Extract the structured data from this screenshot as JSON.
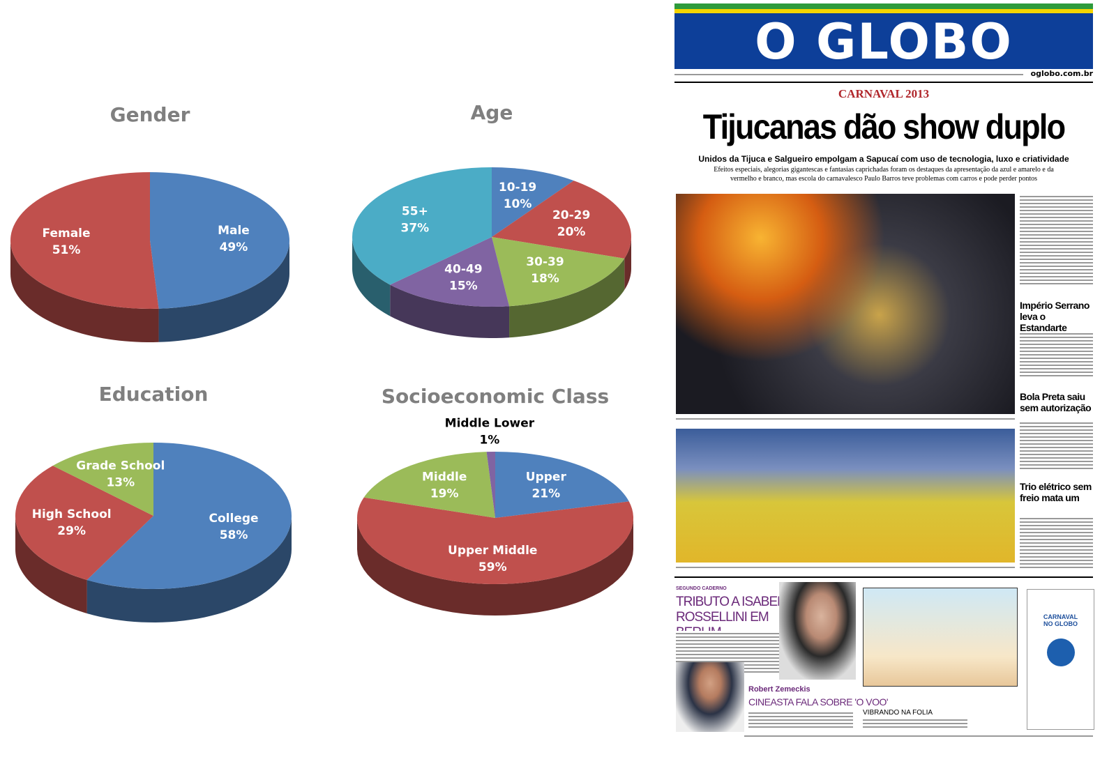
{
  "chart_data": [
    {
      "type": "pie",
      "title": "Gender",
      "categories": [
        "Male",
        "Female"
      ],
      "values": [
        49,
        51
      ],
      "value_labels": [
        "49%",
        "51%"
      ],
      "colors": [
        "#4f81bd",
        "#c0504d"
      ]
    },
    {
      "type": "pie",
      "title": "Age",
      "categories": [
        "10-19",
        "20-29",
        "30-39",
        "40-49",
        "55+"
      ],
      "values": [
        10,
        20,
        18,
        15,
        37
      ],
      "value_labels": [
        "10%",
        "20%",
        "18%",
        "15%",
        "37%"
      ],
      "colors": [
        "#4f81bd",
        "#c0504d",
        "#9bbb59",
        "#8064a2",
        "#4bacc6"
      ]
    },
    {
      "type": "pie",
      "title": "Education",
      "categories": [
        "College",
        "High School",
        "Grade School"
      ],
      "values": [
        58,
        29,
        13
      ],
      "value_labels": [
        "58%",
        "29%",
        "13%"
      ],
      "colors": [
        "#4f81bd",
        "#c0504d",
        "#9bbb59"
      ]
    },
    {
      "type": "pie",
      "title": "Socioeconomic Class",
      "categories": [
        "Upper",
        "Upper Middle",
        "Middle",
        "Middle Lower"
      ],
      "values": [
        21,
        59,
        19,
        1
      ],
      "value_labels": [
        "21%",
        "59%",
        "19%",
        "1%"
      ],
      "colors": [
        "#4f81bd",
        "#c0504d",
        "#9bbb59",
        "#8064a2"
      ]
    }
  ],
  "newspaper": {
    "masthead": "O GLOBO",
    "site": "oglobo.com.br",
    "kicker": "CARNAVAL 2013",
    "headline": "Tijucanas dão show duplo",
    "subhead": "Unidos da Tijuca e Salgueiro empolgam a Sapucaí com uso de tecnologia, luxo e criatividade",
    "deck": "Efeitos especiais, alegorias gigantescas e fantasias caprichadas foram os destaques da apresentação da azul e amarelo e da vermelho e branco, mas escola do carnavalesco Paulo Barros teve problemas com carros e pode perder pontos",
    "side_headlines": [
      "Império Serrano leva o Estandarte",
      "Bola Preta saiu sem autorização",
      "Trio elétrico sem freio mata um"
    ],
    "section": "SEGUNDO CADERNO",
    "feature_title": "TRIBUTO A ISABELLA ROSSELLINI EM BERLIM",
    "person": "Robert Zemeckis",
    "person_title": "CINEASTA FALA SOBRE 'O VOO'",
    "digital_title": "VIBRANDO NA FOLIA",
    "ad": "CARNAVAL NO GLOBO"
  }
}
